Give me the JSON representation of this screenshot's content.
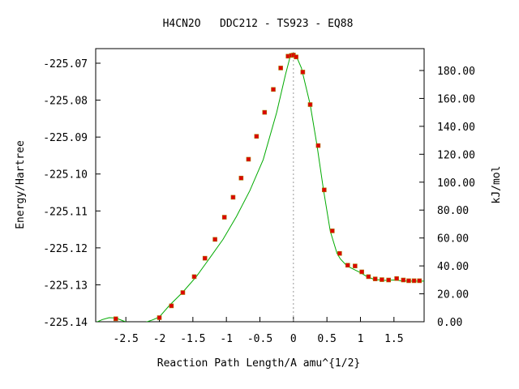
{
  "chart_data": {
    "type": "line",
    "title": "H4CN2O   DDC212 - TS923 - EQ88",
    "xlabel": "Reaction Path Length/A amu^{1/2}",
    "ylabel": "Energy/Hartree",
    "y2label": "kJ/mol",
    "xlim": [
      -2.95,
      1.95
    ],
    "ylim": [
      -225.14,
      -225.066
    ],
    "x_ticks": [
      -2.5,
      -2,
      -1.5,
      -1,
      -0.5,
      0,
      0.5,
      1,
      1.5
    ],
    "x_tick_labels": [
      "-2.5",
      "-2",
      "-1.5",
      "-1",
      "-0.5",
      "0",
      "0.5",
      "1",
      "1.5"
    ],
    "y_ticks": [
      -225.14,
      -225.13,
      -225.12,
      -225.11,
      -225.1,
      -225.09,
      -225.08,
      -225.07
    ],
    "y_tick_labels": [
      "-225.14",
      "-225.13",
      "-225.12",
      "-225.11",
      "-225.10",
      "-225.09",
      "-225.08",
      "-225.07"
    ],
    "y2_ticks": [
      0,
      20,
      40,
      60,
      80,
      100,
      120,
      140,
      160,
      180
    ],
    "y2_tick_labels": [
      "0.00",
      "20.00",
      "40.00",
      "60.00",
      "80.00",
      "100.00",
      "120.00",
      "140.00",
      "160.00",
      "180.00"
    ],
    "ts_marker_x": 0,
    "grid": false,
    "colors": {
      "curve": "#00aa00",
      "points": "#dd0000",
      "ts_line": "#999999"
    },
    "curve_x": [
      -2.95,
      -2.85,
      -2.75,
      -2.65,
      -2.55,
      -2.45,
      -2.35,
      -2.25,
      -2.1,
      -2.0,
      -1.85,
      -1.65,
      -1.45,
      -1.25,
      -1.05,
      -0.85,
      -0.65,
      -0.45,
      -0.25,
      -0.12,
      -0.05,
      0.0,
      0.05,
      0.12,
      0.25,
      0.35,
      0.45,
      0.55,
      0.65,
      0.7,
      0.8,
      0.9,
      1.0,
      1.1,
      1.2,
      1.35,
      1.5,
      1.6,
      1.7,
      1.8,
      1.9,
      1.95
    ],
    "curve_y": [
      -225.1402,
      -225.1394,
      -225.1389,
      -225.139,
      -225.1397,
      -225.1404,
      -225.1407,
      -225.1404,
      -225.1395,
      -225.1387,
      -225.1356,
      -225.132,
      -225.1278,
      -225.1228,
      -225.1177,
      -225.1115,
      -225.1045,
      -225.0961,
      -225.0833,
      -225.0732,
      -225.0683,
      -225.0679,
      -225.0684,
      -225.0713,
      -225.0812,
      -225.0921,
      -225.1044,
      -225.1155,
      -225.1215,
      -225.123,
      -225.1249,
      -225.1258,
      -225.1267,
      -225.1278,
      -225.1285,
      -225.1288,
      -225.1287,
      -225.1289,
      -225.129,
      -225.129,
      -225.129,
      -225.129
    ],
    "series": [
      {
        "x": [
          -2.65,
          -2.0,
          -1.82,
          -1.65,
          -1.48,
          -1.32,
          -1.17,
          -1.03,
          -0.9,
          -0.78,
          -0.67,
          -0.55,
          -0.43,
          -0.3,
          -0.19,
          -0.08,
          -0.03,
          0.0,
          0.04,
          0.14,
          0.25,
          0.37,
          0.46,
          0.58,
          0.69,
          0.81,
          0.92,
          1.02,
          1.12,
          1.22,
          1.32,
          1.42,
          1.54,
          1.64,
          1.72,
          1.8,
          1.88
        ],
        "y": [
          -225.1392,
          -225.1389,
          -225.1357,
          -225.1321,
          -225.1278,
          -225.1228,
          -225.1177,
          -225.1117,
          -225.1063,
          -225.1011,
          -225.096,
          -225.0898,
          -225.0833,
          -225.0771,
          -225.0713,
          -225.0681,
          -225.0679,
          -225.0678,
          -225.0683,
          -225.0724,
          -225.0812,
          -225.0923,
          -225.1043,
          -225.1154,
          -225.1215,
          -225.1247,
          -225.1249,
          -225.1265,
          -225.1278,
          -225.1284,
          -225.1286,
          -225.1287,
          -225.1283,
          -225.1287,
          -225.1289,
          -225.1289,
          -225.1289
        ]
      }
    ]
  }
}
